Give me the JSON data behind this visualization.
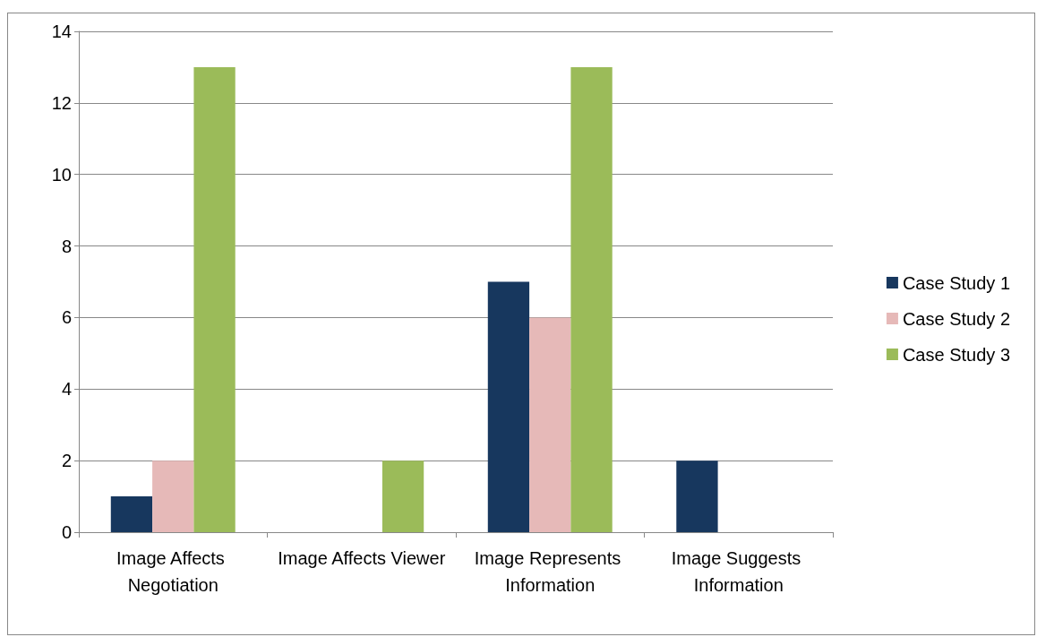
{
  "chart_data": {
    "type": "bar",
    "categories": [
      "Image Affects Negotiation",
      "Image Affects Viewer",
      "Image Represents Information",
      "Image Suggests Information"
    ],
    "series": [
      {
        "name": "Case Study 1",
        "color": "#17375e",
        "values": [
          1,
          0,
          7,
          2
        ]
      },
      {
        "name": "Case Study 2",
        "color": "#e6b9b8",
        "values": [
          2,
          0,
          6,
          0
        ]
      },
      {
        "name": "Case Study 3",
        "color": "#9bbb59",
        "values": [
          13,
          2,
          13,
          0
        ]
      }
    ],
    "ylim": [
      0,
      14
    ],
    "yticks": [
      0,
      2,
      4,
      6,
      8,
      10,
      12,
      14
    ],
    "grid": "y",
    "legend": "right"
  }
}
